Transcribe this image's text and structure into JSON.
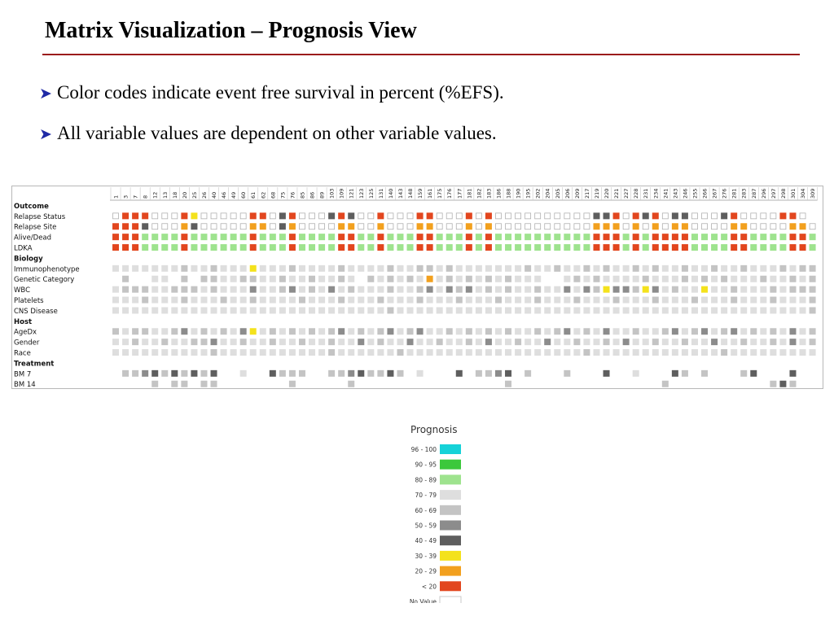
{
  "slide": {
    "title": "Matrix Visualization – Prognosis View",
    "bullets": [
      "Color codes indicate event free survival in percent (%EFS).",
      "All variable values are dependent on other variable values."
    ]
  },
  "colors": {
    "title_rule": "#9b1b1b",
    "bullet_arrow": "#1f2aa6",
    "empty_cell_border": "#b0b0b0"
  },
  "matrix": {
    "columns": [
      "1",
      "3",
      "7",
      "8",
      "12",
      "13",
      "18",
      "20",
      "25",
      "26",
      "40",
      "46",
      "49",
      "60",
      "61",
      "62",
      "68",
      "75",
      "76",
      "85",
      "86",
      "89",
      "103",
      "109",
      "121",
      "123",
      "125",
      "131",
      "140",
      "143",
      "148",
      "159",
      "161",
      "175",
      "176",
      "177",
      "181",
      "182",
      "183",
      "186",
      "188",
      "190",
      "195",
      "202",
      "204",
      "205",
      "206",
      "209",
      "217",
      "219",
      "220",
      "221",
      "227",
      "228",
      "231",
      "234",
      "241",
      "243",
      "246",
      "255",
      "266",
      "267",
      "276",
      "281",
      "283",
      "287",
      "296",
      "297",
      "298",
      "301",
      "304",
      "309"
    ],
    "code_legend": {
      "R": "< 20",
      "O": "20 - 29",
      "Y": "30 - 39",
      "D": "40 - 49",
      "M": "50 - 59",
      "L": "60 - 69",
      "P": "70 - 79",
      "G": "80 - 89",
      "E": "90 - 95",
      "C": "96 - 100",
      "W": "No Value (outlined)",
      ".": "blank"
    },
    "rows": [
      {
        "label": "Outcome",
        "header": true
      },
      {
        "label": "Relapse Status",
        "cells": "WRRRWWWRYWWWWWRRWDRWWWDRDWWRWWWRRWWWRWRWWWWWWWWWWDDRWRDRWDDWWWDRWWWWRRW"
      },
      {
        "label": "Relapse Site",
        "cells": "RRRDWWWODWWWWWOOWDOWWWWOOWWOWWWOOWWWOWOWWWWWWWWWWOOOWOWOWOOWWWWOOWWWWOOW"
      },
      {
        "label": "Alive/Dead",
        "cells": "RRRGGGGRGGGGGGRGGGRGGGGRRGGRGGGRRGGGRGRGGGGGGGGGGRRRGRGRRRRGGGGRRGGGGRRG"
      },
      {
        "label": "LDKA",
        "cells": "RRRGGGGRGGGGGGRGGGRGGGGRRGGRGGGRRGGGRGRGGGGGGGGGGRRRGRGRRRRGGGGRRGGGGRRG"
      },
      {
        "label": "Biology",
        "header": true
      },
      {
        "label": "Immunophenotype",
        "cells": "PPPPPPPLPPLPPPYPPPLPPPPLPPPPLPPLLPLPPPPPPPLPPLPPLPLPPLPLPPLPPLPPLPPPLPLL"
      },
      {
        "label": "Genetic Category",
        "cells": ".L..PP.L.LLPPLLPPLPPLPPLP.LPLPLPOPLPLPLPLPPP..PLPLPPPPLPPPLPLPLPPPLPPLPL"
      },
      {
        "label": "WBC",
        "cells": "PLLLPPLLLPLPPPMPPLMPLPMPLPPPLPPLMPMLMPLPLPPLPPMPMLYMMLYMPLPPYPPLPPPLPLLL"
      },
      {
        "label": "Platelets",
        "cells": "PPPLPPPLPPPLPPLPPPPLPPPLPPPLPPPLPPPLPPPLPPPLPPPLPPPLPPPLPPPLPPPLPPPLPPPL"
      },
      {
        "label": "CNS Disease",
        "cells": "PPPPPPPPPPPPPPPPPPPPPPPPPPPPLPPPPPPPPPPPPPPPPPPPPPPPPPPPPPPPPPPPPPPPPPPL"
      },
      {
        "label": "Host",
        "header": true
      },
      {
        "label": "AgeDx",
        "cells": "LPLLPPLMPLPLPMYPLPLPLPLMPLPLMPLMPPLPLPLPLPPLPLMPLPMPPLPPLMPLMPLMPLPLPMPL"
      },
      {
        "label": "Gender",
        "cells": "PPLPPLPPLLMPPLPPLPPLPPLPPMPLPPMPPLPPLPMPPLPPMPPLPPLPMPPLPPLPPMPPLPPLPMPL"
      },
      {
        "label": "Race",
        "cells": "PPPPPPPPPPLPPPPPPPPPPPLPPPPPPLPPPPPPPPPPPPPPPPPPLPPPPPPPPPPPPPLPPPPPPPPP"
      },
      {
        "label": "Treatment",
        "header": true
      },
      {
        "label": "BM 7",
        "cells": ".LLMDLDLDLD..P..DLLL..LLMDLLDL.P...D.LLMD.L...L...D..P...DL.L...LD...D."
      },
      {
        "label": "BM 14",
        "cells": "....L.LL.LL.......L.....L...............L...............L..........LDL."
      }
    ]
  },
  "legend": {
    "title": "Prognosis",
    "items": [
      {
        "label": "96 - 100",
        "color": "#16d2d8",
        "outlined": false
      },
      {
        "label": "90 - 95",
        "color": "#3cc83c",
        "outlined": false
      },
      {
        "label": "80 - 89",
        "color": "#9ee38e",
        "outlined": false
      },
      {
        "label": "70 - 79",
        "color": "#dedede",
        "outlined": false
      },
      {
        "label": "60 - 69",
        "color": "#c4c4c4",
        "outlined": false
      },
      {
        "label": "50 - 59",
        "color": "#8c8c8c",
        "outlined": false
      },
      {
        "label": "40 - 49",
        "color": "#5e5e5e",
        "outlined": false
      },
      {
        "label": "30 - 39",
        "color": "#f4e21c",
        "outlined": false
      },
      {
        "label": "20 - 29",
        "color": "#f2a01e",
        "outlined": false
      },
      {
        "label": "< 20",
        "color": "#e2461e",
        "outlined": false
      },
      {
        "label": "No Value",
        "color": "#ffffff",
        "outlined": true
      }
    ]
  }
}
